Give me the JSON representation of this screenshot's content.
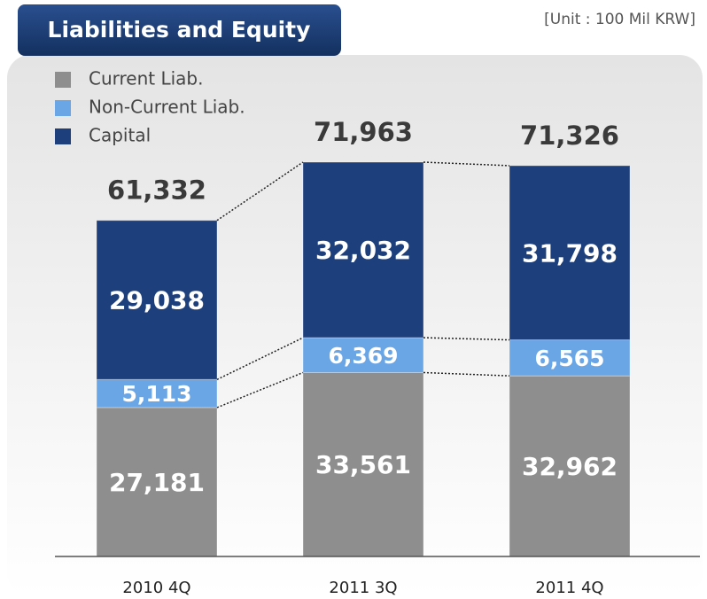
{
  "chart_data": {
    "type": "stacked_bar",
    "title": "Liabilities and Equity",
    "subtitle": "[Unit : 100 Mil KRW]",
    "categories": [
      "2010 4Q",
      "2011 3Q",
      "2011 4Q"
    ],
    "series": [
      {
        "name": "Current Liab.",
        "color": "#8e8e8e",
        "values": [
          27181,
          33561,
          32962
        ],
        "value_labels": [
          "27,181",
          "33,561",
          "32,962"
        ]
      },
      {
        "name": "Non-Current Liab.",
        "color": "#6aa6e6",
        "values": [
          5113,
          6369,
          6565
        ],
        "value_labels": [
          "5,113",
          "6,369",
          "6,565"
        ]
      },
      {
        "name": "Capital",
        "color": "#1d3f7c",
        "values": [
          29038,
          32032,
          31798
        ],
        "value_labels": [
          "29,038",
          "32,032",
          "31,798"
        ]
      }
    ],
    "totals": [
      61332,
      71963,
      71326
    ],
    "total_labels": [
      "61,332",
      "71,963",
      "71,326"
    ],
    "legend": "top-left"
  }
}
